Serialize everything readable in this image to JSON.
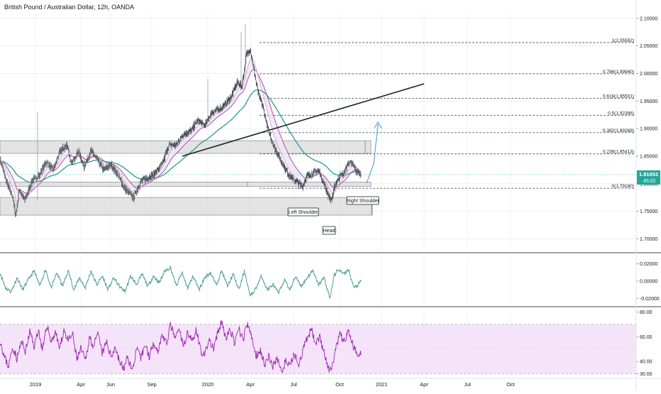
{
  "header": {
    "symbol_title": "British Pound / Australian Dollar, 12h, OANDA"
  },
  "colors": {
    "candle": "#4a4e57",
    "ema_fast": "#d8a2cf",
    "ema_mid": "#b04da8",
    "ema_slow": "#2b9c8f",
    "band_fill": "#ece8f6",
    "zone_fill": "#d7d7d7",
    "trend_line": "#202226",
    "arrow": "#4e9ad1",
    "fib_line": "#5d606b",
    "price_tag": "#26a69a",
    "osc_line": "#3e9189",
    "rsi_line": "#9c27b0",
    "rsi_band": "#f1dbf7",
    "grid": "#eef0f3"
  },
  "chart_data": [
    {
      "type": "candlestick",
      "name": "GBPAUD",
      "y_axis": {
        "ylim": [
          1.68,
          2.11
        ],
        "ticks": [
          "2.10000",
          "2.05000",
          "2.00000",
          "1.95000",
          "1.90000",
          "1.85000",
          "1.80000",
          "1.75000",
          "1.70000"
        ]
      },
      "x_axis": {
        "ticks": [
          "2019",
          "Apr",
          "Jun",
          "Sep",
          "2020",
          "Apr",
          "Jul",
          "Oct",
          "2021",
          "Apr",
          "Jul",
          "Oct"
        ]
      },
      "grid": true,
      "last_price": "1.81652",
      "countdown": "45:02",
      "approx_path": [
        {
          "t": 0,
          "v": 1.845
        },
        {
          "t": 10,
          "v": 1.8
        },
        {
          "t": 18,
          "v": 1.775
        },
        {
          "t": 22,
          "v": 1.74
        },
        {
          "t": 27,
          "v": 1.79
        },
        {
          "t": 35,
          "v": 1.77
        },
        {
          "t": 45,
          "v": 1.805
        },
        {
          "t": 55,
          "v": 1.815
        },
        {
          "t": 65,
          "v": 1.84
        },
        {
          "t": 75,
          "v": 1.825
        },
        {
          "t": 85,
          "v": 1.86
        },
        {
          "t": 95,
          "v": 1.87
        },
        {
          "t": 100,
          "v": 1.835
        },
        {
          "t": 110,
          "v": 1.86
        },
        {
          "t": 118,
          "v": 1.83
        },
        {
          "t": 128,
          "v": 1.86
        },
        {
          "t": 136,
          "v": 1.845
        },
        {
          "t": 146,
          "v": 1.825
        },
        {
          "t": 156,
          "v": 1.835
        },
        {
          "t": 166,
          "v": 1.815
        },
        {
          "t": 176,
          "v": 1.79
        },
        {
          "t": 188,
          "v": 1.775
        },
        {
          "t": 198,
          "v": 1.805
        },
        {
          "t": 208,
          "v": 1.81
        },
        {
          "t": 218,
          "v": 1.82
        },
        {
          "t": 228,
          "v": 1.835
        },
        {
          "t": 238,
          "v": 1.87
        },
        {
          "t": 248,
          "v": 1.87
        },
        {
          "t": 258,
          "v": 1.89
        },
        {
          "t": 268,
          "v": 1.895
        },
        {
          "t": 278,
          "v": 1.915
        },
        {
          "t": 288,
          "v": 1.905
        },
        {
          "t": 298,
          "v": 1.93
        },
        {
          "t": 308,
          "v": 1.935
        },
        {
          "t": 318,
          "v": 1.945
        },
        {
          "t": 326,
          "v": 1.96
        },
        {
          "t": 334,
          "v": 1.985
        },
        {
          "t": 340,
          "v": 1.975
        },
        {
          "t": 346,
          "v": 2.03
        },
        {
          "t": 352,
          "v": 2.045
        },
        {
          "t": 358,
          "v": 2.0
        },
        {
          "t": 364,
          "v": 1.96
        },
        {
          "t": 370,
          "v": 1.94
        },
        {
          "t": 376,
          "v": 1.905
        },
        {
          "t": 382,
          "v": 1.88
        },
        {
          "t": 388,
          "v": 1.86
        },
        {
          "t": 396,
          "v": 1.84
        },
        {
          "t": 404,
          "v": 1.82
        },
        {
          "t": 412,
          "v": 1.808
        },
        {
          "t": 420,
          "v": 1.8
        },
        {
          "t": 426,
          "v": 1.795
        },
        {
          "t": 432,
          "v": 1.815
        },
        {
          "t": 440,
          "v": 1.818
        },
        {
          "t": 448,
          "v": 1.825
        },
        {
          "t": 456,
          "v": 1.8
        },
        {
          "t": 462,
          "v": 1.778
        },
        {
          "t": 466,
          "v": 1.77
        },
        {
          "t": 472,
          "v": 1.8
        },
        {
          "t": 478,
          "v": 1.815
        },
        {
          "t": 484,
          "v": 1.818
        },
        {
          "t": 490,
          "v": 1.838
        },
        {
          "t": 496,
          "v": 1.835
        },
        {
          "t": 502,
          "v": 1.822
        },
        {
          "t": 508,
          "v": 1.815
        }
      ],
      "moving_averages": [
        "fast",
        "mid",
        "slow"
      ],
      "fibonacci": {
        "levels": [
          {
            "label": "1(2.05592)",
            "value": 2.05592
          },
          {
            "label": "0.786(1.99940)",
            "value": 1.9994
          },
          {
            "label": "0.618(1.95501)",
            "value": 1.95501
          },
          {
            "label": "0.5(1.92386)",
            "value": 1.92386
          },
          {
            "label": "0.382(1.89269)",
            "value": 1.89269
          },
          {
            "label": "0.236(1.85413)",
            "value": 1.85413
          },
          {
            "label": "0(1.79180)",
            "value": 1.7918
          }
        ]
      },
      "zones": [
        {
          "low": 1.855,
          "high": 1.878
        },
        {
          "low": 1.795,
          "high": 1.803
        },
        {
          "low": 1.743,
          "high": 1.775
        }
      ],
      "annotations": [
        "Left Shoulder",
        "Right Shoulder",
        "Head"
      ]
    },
    {
      "type": "line",
      "name": "oscillator",
      "ylim": [
        -0.028,
        0.028
      ],
      "ticks": [
        "0.02000",
        "0.00000",
        "-0.02000"
      ],
      "approx_path": [
        {
          "t": 0,
          "v": 0.01
        },
        {
          "t": 8,
          "v": -0.008
        },
        {
          "t": 16,
          "v": -0.012
        },
        {
          "t": 24,
          "v": 0.004
        },
        {
          "t": 32,
          "v": -0.01
        },
        {
          "t": 40,
          "v": 0.002
        },
        {
          "t": 48,
          "v": 0.012
        },
        {
          "t": 56,
          "v": -0.006
        },
        {
          "t": 64,
          "v": 0.014
        },
        {
          "t": 72,
          "v": -0.008
        },
        {
          "t": 80,
          "v": 0.01
        },
        {
          "t": 88,
          "v": -0.006
        },
        {
          "t": 96,
          "v": 0.012
        },
        {
          "t": 104,
          "v": -0.01
        },
        {
          "t": 112,
          "v": 0.004
        },
        {
          "t": 120,
          "v": -0.008
        },
        {
          "t": 128,
          "v": 0.012
        },
        {
          "t": 136,
          "v": -0.004
        },
        {
          "t": 144,
          "v": 0.006
        },
        {
          "t": 152,
          "v": -0.01
        },
        {
          "t": 160,
          "v": 0.004
        },
        {
          "t": 168,
          "v": -0.006
        },
        {
          "t": 176,
          "v": -0.012
        },
        {
          "t": 184,
          "v": 0.006
        },
        {
          "t": 192,
          "v": -0.004
        },
        {
          "t": 200,
          "v": 0.008
        },
        {
          "t": 208,
          "v": -0.006
        },
        {
          "t": 216,
          "v": 0.006
        },
        {
          "t": 224,
          "v": -0.002
        },
        {
          "t": 232,
          "v": 0.012
        },
        {
          "t": 240,
          "v": 0.016
        },
        {
          "t": 248,
          "v": -0.006
        },
        {
          "t": 256,
          "v": 0.01
        },
        {
          "t": 264,
          "v": -0.008
        },
        {
          "t": 272,
          "v": 0.006
        },
        {
          "t": 280,
          "v": -0.01
        },
        {
          "t": 288,
          "v": 0.004
        },
        {
          "t": 296,
          "v": 0.01
        },
        {
          "t": 304,
          "v": -0.004
        },
        {
          "t": 312,
          "v": 0.012
        },
        {
          "t": 320,
          "v": -0.006
        },
        {
          "t": 328,
          "v": 0.008
        },
        {
          "t": 336,
          "v": -0.01
        },
        {
          "t": 344,
          "v": 0.012
        },
        {
          "t": 352,
          "v": -0.018
        },
        {
          "t": 360,
          "v": -0.008
        },
        {
          "t": 368,
          "v": 0.006
        },
        {
          "t": 376,
          "v": -0.01
        },
        {
          "t": 384,
          "v": -0.004
        },
        {
          "t": 392,
          "v": -0.014
        },
        {
          "t": 400,
          "v": 0.002
        },
        {
          "t": 408,
          "v": -0.01
        },
        {
          "t": 416,
          "v": 0.006
        },
        {
          "t": 424,
          "v": -0.006
        },
        {
          "t": 432,
          "v": 0.004
        },
        {
          "t": 440,
          "v": 0.012
        },
        {
          "t": 448,
          "v": -0.004
        },
        {
          "t": 456,
          "v": 0.004
        },
        {
          "t": 464,
          "v": -0.02
        },
        {
          "t": 470,
          "v": 0.006
        },
        {
          "t": 476,
          "v": 0.014
        },
        {
          "t": 484,
          "v": 0.008
        },
        {
          "t": 490,
          "v": 0.014
        },
        {
          "t": 498,
          "v": -0.008
        },
        {
          "t": 504,
          "v": -0.004
        },
        {
          "t": 508,
          "v": 0.0
        }
      ]
    },
    {
      "type": "line",
      "name": "rsi",
      "ylim": [
        28,
        82
      ],
      "ticks": [
        "80.00",
        "60.00",
        "40.00",
        "30.00"
      ],
      "band": [
        30,
        70
      ],
      "approx_path": [
        {
          "t": 0,
          "v": 58
        },
        {
          "t": 6,
          "v": 44
        },
        {
          "t": 12,
          "v": 36
        },
        {
          "t": 18,
          "v": 52
        },
        {
          "t": 24,
          "v": 42
        },
        {
          "t": 30,
          "v": 56
        },
        {
          "t": 36,
          "v": 48
        },
        {
          "t": 42,
          "v": 64
        },
        {
          "t": 48,
          "v": 52
        },
        {
          "t": 54,
          "v": 66
        },
        {
          "t": 60,
          "v": 48
        },
        {
          "t": 66,
          "v": 70
        },
        {
          "t": 72,
          "v": 56
        },
        {
          "t": 78,
          "v": 64
        },
        {
          "t": 84,
          "v": 50
        },
        {
          "t": 90,
          "v": 66
        },
        {
          "t": 96,
          "v": 56
        },
        {
          "t": 102,
          "v": 62
        },
        {
          "t": 108,
          "v": 42
        },
        {
          "t": 114,
          "v": 50
        },
        {
          "t": 120,
          "v": 40
        },
        {
          "t": 126,
          "v": 60
        },
        {
          "t": 132,
          "v": 52
        },
        {
          "t": 138,
          "v": 62
        },
        {
          "t": 144,
          "v": 46
        },
        {
          "t": 150,
          "v": 56
        },
        {
          "t": 156,
          "v": 44
        },
        {
          "t": 162,
          "v": 52
        },
        {
          "t": 168,
          "v": 40
        },
        {
          "t": 174,
          "v": 34
        },
        {
          "t": 180,
          "v": 44
        },
        {
          "t": 186,
          "v": 32
        },
        {
          "t": 192,
          "v": 50
        },
        {
          "t": 198,
          "v": 42
        },
        {
          "t": 204,
          "v": 54
        },
        {
          "t": 210,
          "v": 44
        },
        {
          "t": 216,
          "v": 56
        },
        {
          "t": 222,
          "v": 48
        },
        {
          "t": 228,
          "v": 62
        },
        {
          "t": 234,
          "v": 54
        },
        {
          "t": 240,
          "v": 70
        },
        {
          "t": 246,
          "v": 58
        },
        {
          "t": 252,
          "v": 66
        },
        {
          "t": 258,
          "v": 52
        },
        {
          "t": 264,
          "v": 64
        },
        {
          "t": 270,
          "v": 56
        },
        {
          "t": 276,
          "v": 66
        },
        {
          "t": 282,
          "v": 50
        },
        {
          "t": 288,
          "v": 44
        },
        {
          "t": 294,
          "v": 58
        },
        {
          "t": 300,
          "v": 50
        },
        {
          "t": 306,
          "v": 62
        },
        {
          "t": 312,
          "v": 72
        },
        {
          "t": 318,
          "v": 58
        },
        {
          "t": 324,
          "v": 66
        },
        {
          "t": 330,
          "v": 54
        },
        {
          "t": 336,
          "v": 66
        },
        {
          "t": 342,
          "v": 58
        },
        {
          "t": 348,
          "v": 70
        },
        {
          "t": 354,
          "v": 60
        },
        {
          "t": 360,
          "v": 44
        },
        {
          "t": 366,
          "v": 50
        },
        {
          "t": 372,
          "v": 38
        },
        {
          "t": 378,
          "v": 44
        },
        {
          "t": 384,
          "v": 36
        },
        {
          "t": 390,
          "v": 42
        },
        {
          "t": 396,
          "v": 32
        },
        {
          "t": 402,
          "v": 40
        },
        {
          "t": 408,
          "v": 36
        },
        {
          "t": 414,
          "v": 46
        },
        {
          "t": 420,
          "v": 38
        },
        {
          "t": 426,
          "v": 48
        },
        {
          "t": 432,
          "v": 58
        },
        {
          "t": 438,
          "v": 66
        },
        {
          "t": 444,
          "v": 56
        },
        {
          "t": 450,
          "v": 60
        },
        {
          "t": 456,
          "v": 46
        },
        {
          "t": 462,
          "v": 34
        },
        {
          "t": 466,
          "v": 32
        },
        {
          "t": 472,
          "v": 48
        },
        {
          "t": 478,
          "v": 62
        },
        {
          "t": 484,
          "v": 56
        },
        {
          "t": 490,
          "v": 64
        },
        {
          "t": 496,
          "v": 54
        },
        {
          "t": 502,
          "v": 46
        },
        {
          "t": 508,
          "v": 48
        }
      ]
    }
  ]
}
